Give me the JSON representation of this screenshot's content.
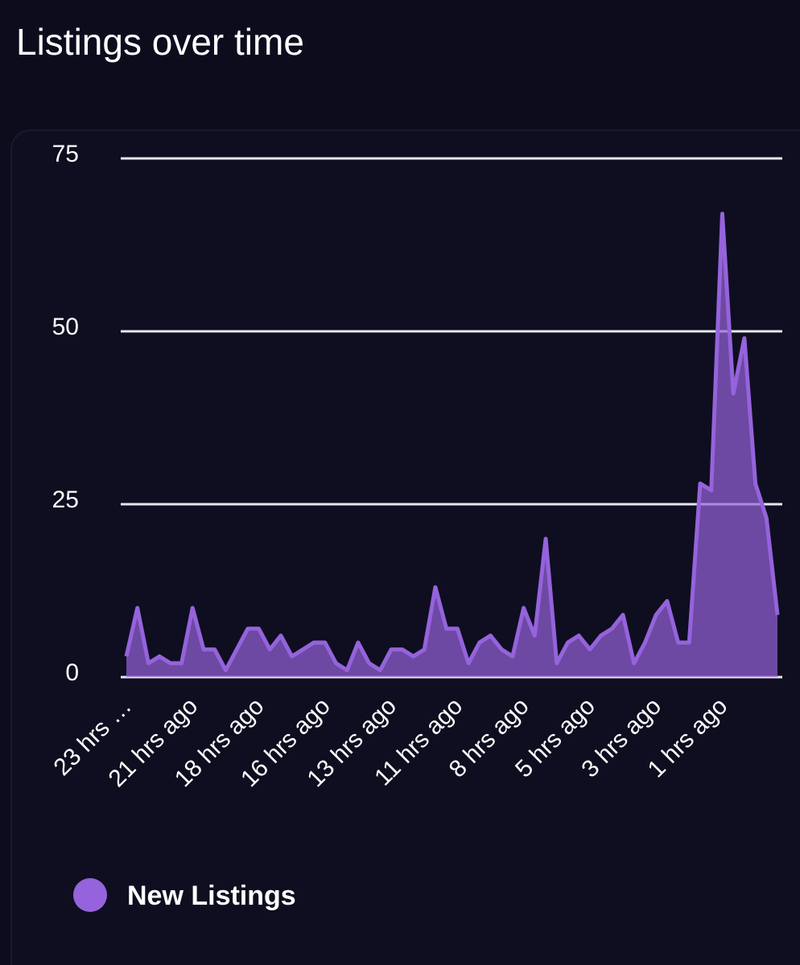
{
  "chart_data": {
    "type": "area",
    "title": "Listings over time",
    "categories": [
      "23 hrs …",
      null,
      null,
      null,
      null,
      null,
      "21 hrs ago",
      null,
      null,
      null,
      null,
      null,
      "18 hrs ago",
      null,
      null,
      null,
      null,
      null,
      "16 hrs ago",
      null,
      null,
      null,
      null,
      null,
      "13 hrs ago",
      null,
      null,
      null,
      null,
      null,
      "11 hrs ago",
      null,
      null,
      null,
      null,
      null,
      "8 hrs ago",
      null,
      null,
      null,
      null,
      null,
      "5 hrs ago",
      null,
      null,
      null,
      null,
      null,
      "3 hrs ago",
      null,
      null,
      null,
      null,
      null,
      "1 hrs ago",
      null,
      null,
      null,
      null,
      null
    ],
    "series": [
      {
        "name": "New Listings",
        "color": "#9563dc",
        "values": [
          3,
          10,
          2,
          3,
          2,
          2,
          10,
          4,
          4,
          1,
          4,
          7,
          7,
          4,
          6,
          3,
          4,
          5,
          5,
          2,
          1,
          5,
          2,
          1,
          4,
          4,
          3,
          4,
          13,
          7,
          7,
          2,
          5,
          6,
          4,
          3,
          10,
          6,
          20,
          2,
          5,
          6,
          4,
          6,
          7,
          9,
          2,
          5,
          9,
          11,
          5,
          5,
          28,
          27,
          67,
          41,
          49,
          28,
          23,
          9
        ]
      }
    ],
    "ylim": [
      0,
      75
    ],
    "yticks": [
      0,
      25,
      50,
      75
    ],
    "grid": true,
    "legend": "bottom-left"
  }
}
